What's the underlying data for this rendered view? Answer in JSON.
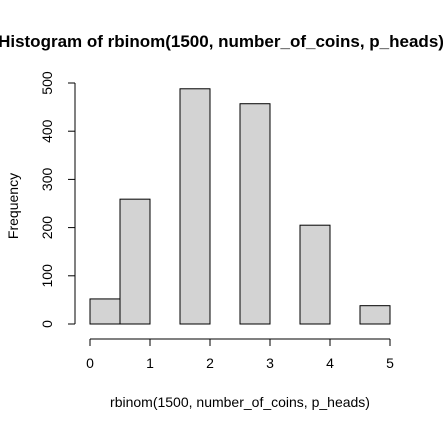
{
  "chart_data": {
    "type": "bar",
    "title": "Histogram of rbinom(1500, number_of_coins, p_heads)",
    "xlabel": "rbinom(1500, number_of_coins, p_heads)",
    "ylabel": "Frequency",
    "bins": [
      {
        "x0": 0.0,
        "x1": 0.5,
        "value": 52
      },
      {
        "x0": 0.5,
        "x1": 1.0,
        "value": 259
      },
      {
        "x0": 1.0,
        "x1": 1.5,
        "value": 0
      },
      {
        "x0": 1.5,
        "x1": 2.0,
        "value": 488
      },
      {
        "x0": 2.0,
        "x1": 2.5,
        "value": 0
      },
      {
        "x0": 2.5,
        "x1": 3.0,
        "value": 457
      },
      {
        "x0": 3.0,
        "x1": 3.5,
        "value": 0
      },
      {
        "x0": 3.5,
        "x1": 4.0,
        "value": 205
      },
      {
        "x0": 4.0,
        "x1": 4.5,
        "value": 0
      },
      {
        "x0": 4.5,
        "x1": 5.0,
        "value": 38
      }
    ],
    "xlim": [
      0,
      5
    ],
    "ylim": [
      0,
      500
    ],
    "xticks": [
      0,
      1,
      2,
      3,
      4,
      5
    ],
    "yticks": [
      0,
      100,
      200,
      300,
      400,
      500
    ],
    "bar_color": "#d3d3d3",
    "grid": false
  }
}
